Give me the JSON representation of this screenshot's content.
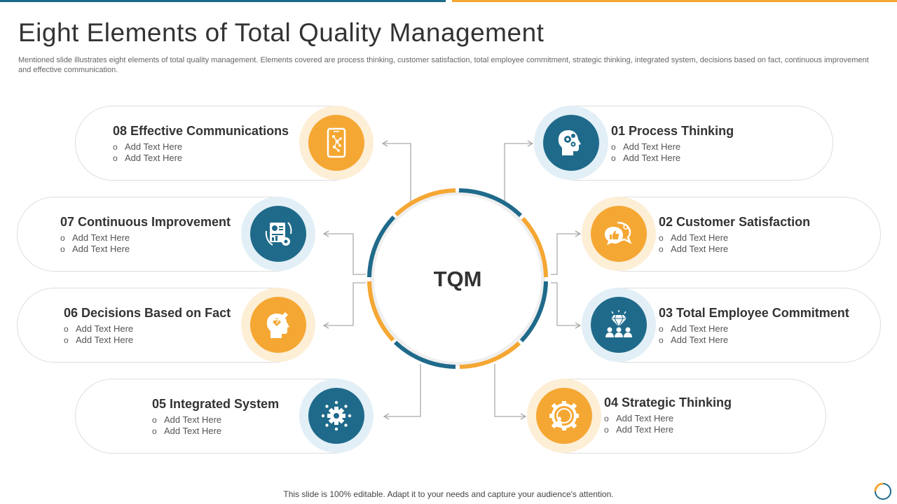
{
  "title": "Eight Elements of Total Quality Management",
  "subtitle": "Mentioned slide illustrates eight elements of total quality management. Elements covered are process thinking, customer satisfaction, total employee commitment, strategic thinking, integrated system, decisions based on fact, continuous improvement and effective communication.",
  "center_label": "TQM",
  "elements": [
    {
      "title": "01 Process Thinking",
      "bullets": [
        "Add Text Here",
        "Add Text Here"
      ],
      "icon": "head-gears-icon",
      "color": "#1f6a8a"
    },
    {
      "title": "02 Customer Satisfaction",
      "bullets": [
        "Add Text Here",
        "Add Text Here"
      ],
      "icon": "speech-bubble-thumbs-up-icon",
      "color": "#f5a733"
    },
    {
      "title": "03 Total Employee Commitment",
      "bullets": [
        "Add Text Here",
        "Add Text Here"
      ],
      "icon": "team-diamond-icon",
      "color": "#1f6a8a"
    },
    {
      "title": "04 Strategic Thinking",
      "bullets": [
        "Add Text Here",
        "Add Text Here"
      ],
      "icon": "gear-chess-icon",
      "color": "#f5a733"
    },
    {
      "title": "05 Integrated System",
      "bullets": [
        "Add Text Here",
        "Add Text Here"
      ],
      "icon": "gear-network-icon",
      "color": "#1f6a8a"
    },
    {
      "title": "06 Decisions Based on Fact",
      "bullets": [
        "Add Text Here",
        "Add Text Here"
      ],
      "icon": "head-question-icon",
      "color": "#f5a733"
    },
    {
      "title": "07 Continuous Improvement",
      "bullets": [
        "Add Text Here",
        "Add Text Here"
      ],
      "icon": "report-cycle-icon",
      "color": "#1f6a8a"
    },
    {
      "title": "08 Effective Communications",
      "bullets": [
        "Add Text Here",
        "Add Text Here"
      ],
      "icon": "smartphone-network-icon",
      "color": "#f5a733"
    }
  ],
  "footer": "This slide is 100% editable. Adapt it to your needs and capture your audience's attention.",
  "colors": {
    "blue": "#1f6a8a",
    "orange": "#f5a733",
    "border": "#dedede"
  }
}
